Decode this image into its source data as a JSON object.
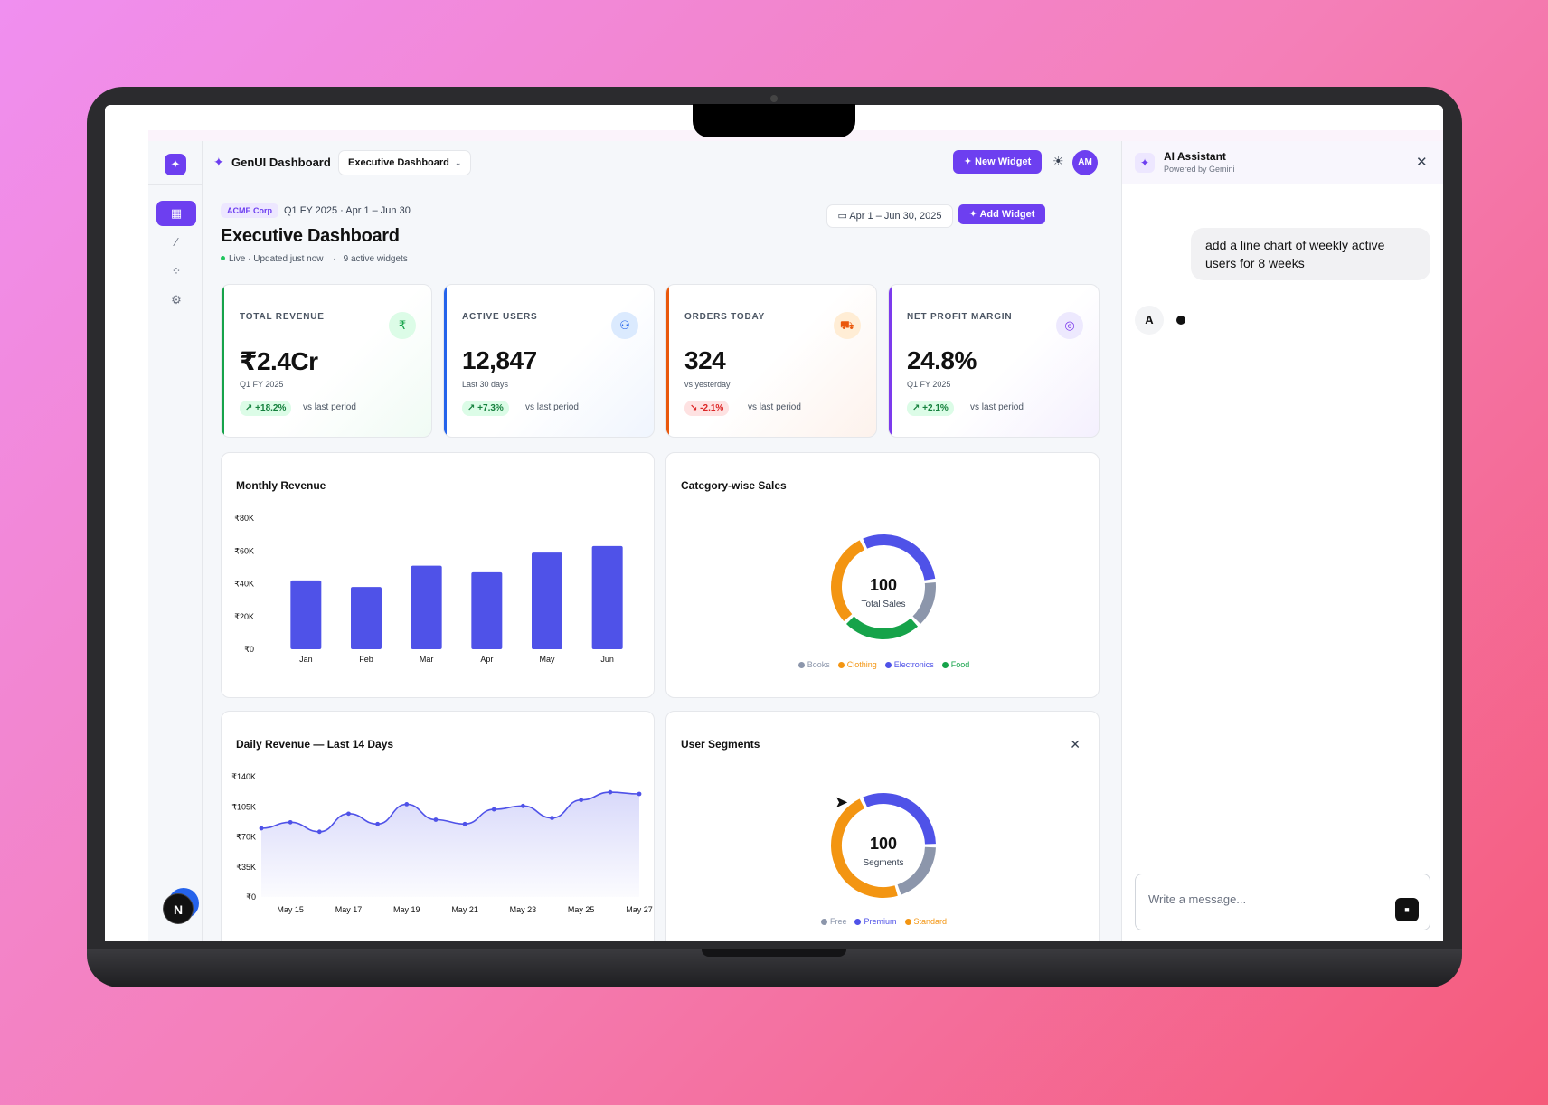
{
  "topbar": {
    "brand_name": "GenUI Dashboard",
    "dashboard_select": "Executive Dashboard",
    "new_widget_label": "New Widget",
    "avatar_initials": "AM"
  },
  "header": {
    "company_badge": "ACME Corp",
    "period": "Q1 FY 2025 · Apr 1 – Jun 30",
    "title": "Executive Dashboard",
    "live_status": "Live · Updated just now",
    "widget_count": "9 active widgets",
    "date_range": "Apr 1 – Jun 30, 2025",
    "add_widget_label": "Add Widget"
  },
  "kpis": [
    {
      "label": "TOTAL REVENUE",
      "value": "₹2.4Cr",
      "sub": "Q1 FY 2025",
      "change": "+18.2%",
      "direction": "up",
      "vs": "vs last period",
      "color": "#16a34a",
      "icon": "rupee-icon",
      "icon_char": "₹",
      "icon_bg": "#dcfce7"
    },
    {
      "label": "ACTIVE USERS",
      "value": "12,847",
      "sub": "Last 30 days",
      "change": "+7.3%",
      "direction": "up",
      "vs": "vs last period",
      "color": "#2563eb",
      "icon": "users-icon",
      "icon_char": "👥",
      "icon_bg": "#dbeafe"
    },
    {
      "label": "ORDERS TODAY",
      "value": "324",
      "sub": "vs yesterday",
      "change": "-2.1%",
      "direction": "down",
      "vs": "vs last period",
      "color": "#ea580c",
      "icon": "cart-icon",
      "icon_char": "🛒",
      "icon_bg": "#ffedd5"
    },
    {
      "label": "NET PROFIT MARGIN",
      "value": "24.8%",
      "sub": "Q1 FY 2025",
      "change": "+2.1%",
      "direction": "up",
      "vs": "vs last period",
      "color": "#7c3aed",
      "icon": "target-icon",
      "icon_char": "◎",
      "icon_bg": "#ede9fe"
    }
  ],
  "charts": {
    "monthly_title": "Monthly Revenue",
    "category_title": "Category-wise Sales",
    "daily_title": "Daily Revenue — Last 14 Days",
    "segments_title": "User Segments"
  },
  "chart_data": [
    {
      "type": "bar",
      "title": "Monthly Revenue",
      "categories": [
        "Jan",
        "Feb",
        "Mar",
        "Apr",
        "May",
        "Jun"
      ],
      "values": [
        42,
        38,
        51,
        47,
        59,
        63
      ],
      "ylim": [
        0,
        80
      ],
      "yticks": [
        "₹0",
        "₹20K",
        "₹40K",
        "₹60K",
        "₹80K"
      ],
      "color": "#4f52e8"
    },
    {
      "type": "pie",
      "title": "Category-wise Sales",
      "center_value": "100",
      "center_label": "Total Sales",
      "labels": [
        "Books",
        "Clothing",
        "Electronics",
        "Food"
      ],
      "values": [
        15,
        30,
        30,
        25
      ],
      "colors": [
        "#8c96ab",
        "#f39512",
        "#4f52e8",
        "#16a34a"
      ]
    },
    {
      "type": "area",
      "title": "Daily Revenue — Last 14 Days",
      "x": [
        "May 14",
        "May 15",
        "May 16",
        "May 17",
        "May 18",
        "May 19",
        "May 20",
        "May 21",
        "May 22",
        "May 23",
        "May 24",
        "May 25",
        "May 26",
        "May 27"
      ],
      "xticks": [
        "May 15",
        "May 17",
        "May 19",
        "May 21",
        "May 23",
        "May 25",
        "May 27"
      ],
      "values": [
        80,
        87,
        76,
        97,
        85,
        108,
        90,
        85,
        102,
        106,
        92,
        113,
        122,
        120
      ],
      "ylim": [
        0,
        140
      ],
      "yticks": [
        "₹0",
        "₹35K",
        "₹70K",
        "₹105K",
        "₹140K"
      ],
      "color": "#4f52e8"
    },
    {
      "type": "pie",
      "title": "User Segments",
      "center_value": "100",
      "center_label": "Segments",
      "labels": [
        "Free",
        "Premium",
        "Standard"
      ],
      "values": [
        20,
        32,
        48
      ],
      "colors": [
        "#8c96ab",
        "#4f52e8",
        "#f39512"
      ]
    }
  ],
  "assistant": {
    "title": "AI Assistant",
    "subtitle": "Powered by Gemini",
    "user_message": "add a line chart of weekly active users for 8 weeks",
    "bot_initial": "A",
    "input_placeholder": "Write a message..."
  },
  "rail": {
    "logo_icon": "sparkle-icon",
    "fab_letter": "N"
  }
}
